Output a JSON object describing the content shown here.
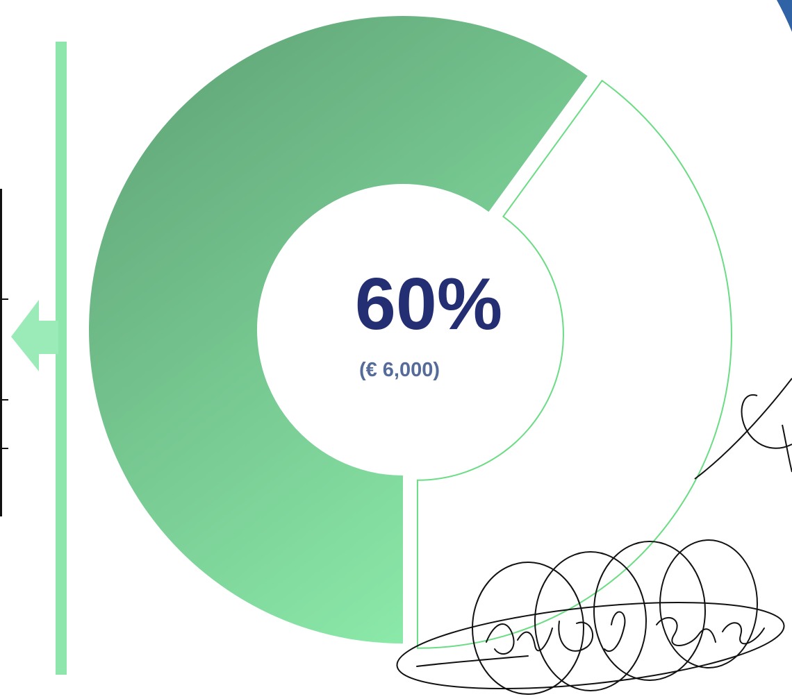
{
  "chart_data": {
    "type": "donut",
    "segments": [
      {
        "value": 60,
        "color": "#6CC08A"
      },
      {
        "value": 40,
        "color": "#FFFFFF"
      }
    ],
    "center_value": "60%",
    "center_subvalue": "(€ 6,000)"
  },
  "colors": {
    "filled_start": "#5E9F74",
    "filled_end": "#8AE8A8",
    "remainder_outline": "#6ADC84",
    "bar": "#8FE6AD",
    "arrow": "#9AEBB8",
    "text_primary": "#232E73",
    "text_secondary": "#556B9A",
    "corner_accent": "#2F63A6"
  },
  "icons": {
    "arrow": "left-arrow-icon",
    "signature": "handwritten-signature",
    "corner_mark": "corner-accent-icon"
  }
}
